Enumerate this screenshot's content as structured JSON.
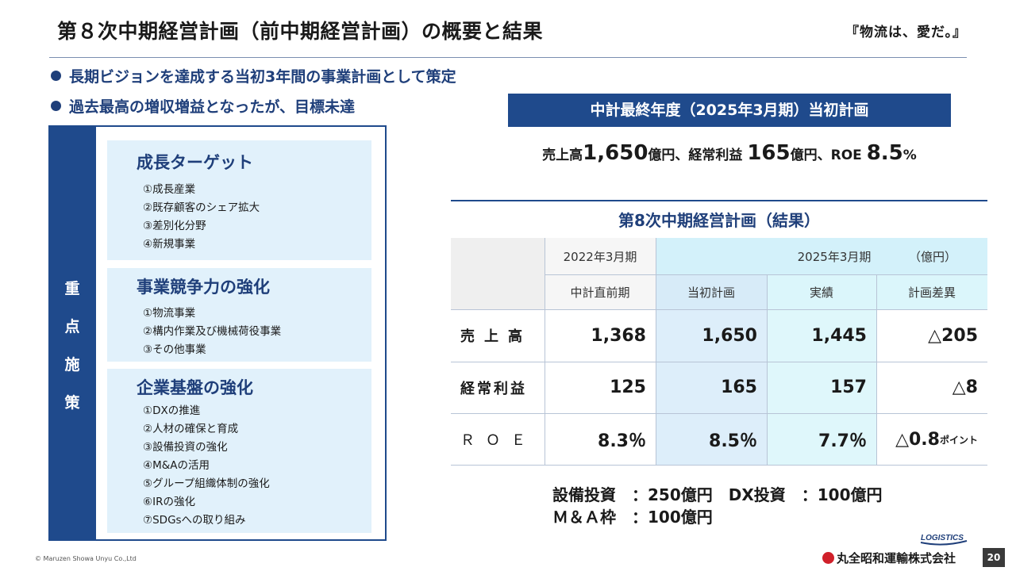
{
  "header": {
    "title": "第８次中期経営計画（前中期経営計画）の概要と結果",
    "slogan": "『物流は、愛だ。』"
  },
  "bullets": [
    "長期ビジョンを達成する当初3年間の事業計画として策定",
    "過去最高の増収増益となったが、目標未達"
  ],
  "measures": {
    "side_label": [
      "重",
      "点",
      "施",
      "策"
    ],
    "groups": [
      {
        "title": "成長ターゲット",
        "items": [
          "①成長産業",
          "②既存顧客のシェア拡大",
          "③差別化分野",
          "④新規事業"
        ]
      },
      {
        "title": "事業競争力の強化",
        "items": [
          "①物流事業",
          "②構内作業及び機械荷役事業",
          "③その他事業"
        ]
      },
      {
        "title": "企業基盤の強化",
        "items": [
          "①DXの推進",
          "②人材の確保と育成",
          "③設備投資の強化",
          "④M&Aの活用",
          "⑤グループ組織体制の強化",
          "⑥IRの強化",
          "⑦SDGsへの取り組み"
        ]
      }
    ]
  },
  "initial_plan": {
    "banner": "中計最終年度（2025年3月期）当初計画",
    "sales_label": "売上高",
    "sales_value": "1,650",
    "sales_unit": "億円、",
    "profit_label": "経常利益 ",
    "profit_value": "165",
    "profit_unit": "億円、",
    "roe_label": "ROE ",
    "roe_value": "8.5",
    "roe_unit": "%"
  },
  "results": {
    "title": "第8次中期経営計画（結果）",
    "header_row1": {
      "prev_year": "2022年3月期",
      "target_year": "2025年3月期",
      "unit": "（億円）"
    },
    "header_row2": {
      "prev": "中計直前期",
      "plan": "当初計画",
      "actual": "実績",
      "diff": "計画差異"
    },
    "rows": [
      {
        "label": "売上高",
        "prev": "1,368",
        "plan": "1,650",
        "actual": "1,445",
        "diff": "△205",
        "diff_unit": ""
      },
      {
        "label": "経常利益",
        "prev": "125",
        "plan": "165",
        "actual": "157",
        "diff": "△8",
        "diff_unit": ""
      },
      {
        "label": "ＲＯＥ",
        "prev": "8.3％",
        "plan": "8.5％",
        "actual": "7.7％",
        "diff": "△0.8",
        "diff_unit": "ポイント"
      }
    ]
  },
  "investments": {
    "line1": "設備投資　：250億円　DX投資　：100億円",
    "line2": "Ｍ＆Ａ枠　：100億円"
  },
  "footer": {
    "copyright": "© Maruzen Showa Unyu Co.,Ltd",
    "company": "丸全昭和運輸株式会社",
    "logo_text": "LOGISTICS",
    "page": "20"
  },
  "colors": {
    "navy": "#1f4a8c",
    "light_blue": "#e1f1fb",
    "table_plan_bg": "#ddeefa",
    "table_actual_bg": "#dff7fb"
  }
}
